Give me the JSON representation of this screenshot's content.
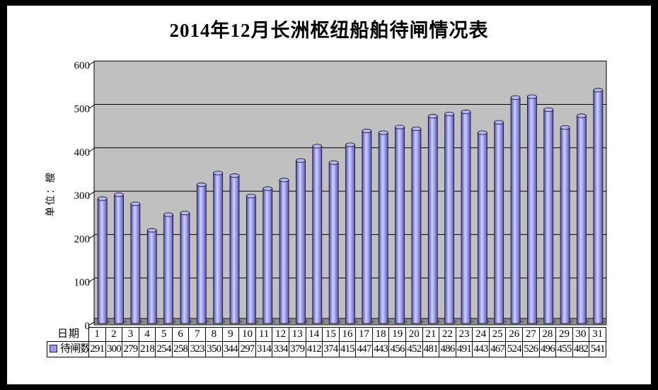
{
  "window": {
    "background": "#ffffff",
    "frame_color": "#000000"
  },
  "chart_data": {
    "type": "bar",
    "bar_shape": "cylinder-3d",
    "title": "2014年12月长洲枢纽船舶待闸情况表",
    "xlabel": "日期",
    "ylabel": "单位：艘",
    "categories": [
      "1",
      "2",
      "3",
      "4",
      "5",
      "6",
      "7",
      "8",
      "9",
      "10",
      "11",
      "12",
      "13",
      "14",
      "15",
      "16",
      "17",
      "18",
      "19",
      "20",
      "21",
      "22",
      "23",
      "24",
      "25",
      "26",
      "27",
      "28",
      "29",
      "30",
      "31"
    ],
    "series": [
      {
        "name": "待闸数",
        "values": [
          291,
          300,
          279,
          218,
          254,
          258,
          323,
          350,
          344,
          297,
          314,
          334,
          379,
          412,
          374,
          415,
          447,
          443,
          456,
          452,
          481,
          486,
          491,
          443,
          467,
          524,
          526,
          496,
          455,
          482,
          541
        ]
      }
    ],
    "ylim": [
      0,
      600
    ],
    "yticks": [
      0,
      100,
      200,
      300,
      400,
      500,
      600
    ],
    "grid": true,
    "legend_position": "bottom-table-row",
    "plot_bg": "#c0c0c0",
    "floor_color": "#8c8c8c",
    "gridline_color": "#000000",
    "bar_color": "#9999ff",
    "bar_edge_color": "#50509e",
    "bar_highlight_color": "#d2d2ff",
    "bar_top_color": "#b5b5f5",
    "bar_shadow_color": "#686868"
  }
}
